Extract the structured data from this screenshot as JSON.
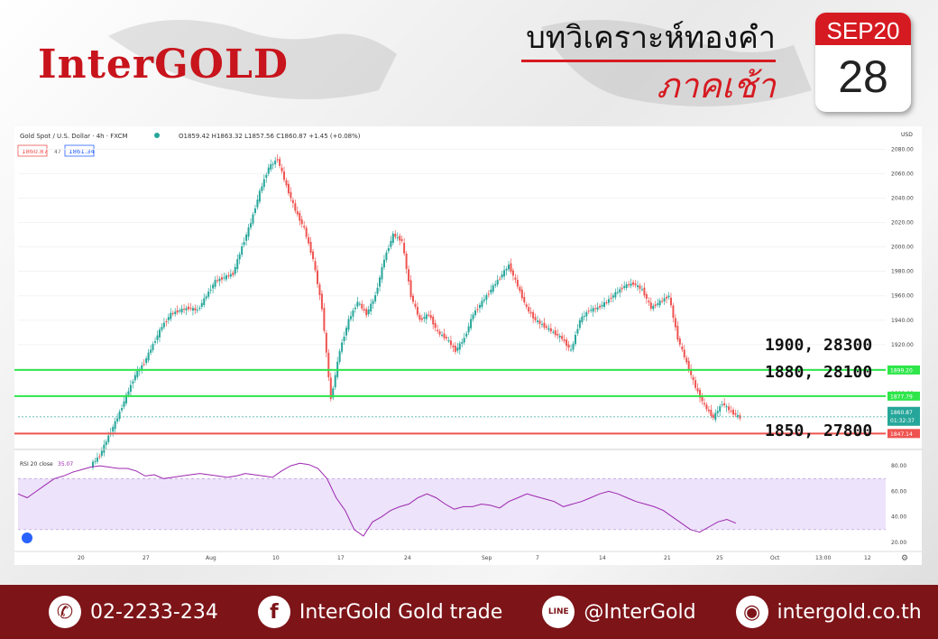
{
  "brand": {
    "logo": "InterGOLD"
  },
  "header": {
    "title_line1": "บทวิเคราะห์ทองคำ",
    "title_line2": "ภาคเช้า"
  },
  "calendar": {
    "month": "SEP20",
    "day": "28"
  },
  "colors": {
    "brand_red": "#d61a21",
    "footer_bg": "#7d1418",
    "bull": "#26a69a",
    "bear": "#ef5350",
    "support_green": "#2ee64a",
    "resistance_red": "#ef5350",
    "rsi": "#9c27b0"
  },
  "chart_header": {
    "symbol": "Gold Spot / U.S. Dollar · 4h · FXCM",
    "ohlc": "O1859.42 H1863.32 L1857.56 C1860.87 +1.45 (+0.08%)",
    "bid": "1860.87",
    "spread": "47",
    "ask": "1861.34",
    "currency": "USD"
  },
  "chart_data": {
    "type": "line",
    "title": "",
    "ylabel": "",
    "ylim": [
      1840,
      2084
    ],
    "yticks": [
      "2080.00",
      "2060.00",
      "2040.00",
      "2020.00",
      "2000.00",
      "1980.00",
      "1960.00",
      "1940.00",
      "1920.00",
      "1900.00",
      "1880.00",
      "1860.00"
    ],
    "x_tick_labels": [
      "20",
      "27",
      "Aug",
      "10",
      "17",
      "24",
      "Sep",
      "7",
      "14",
      "21",
      "25",
      "Oct",
      "13:00",
      "12"
    ],
    "series": [
      {
        "values": [
          1829,
          1845,
          1860,
          1878,
          1895,
          1905,
          1920,
          1935,
          1945,
          1948,
          1950,
          1948,
          1960,
          1972,
          1975,
          1978,
          2000,
          2020,
          2045,
          2065,
          2072,
          2050,
          2030,
          2015,
          1990,
          1950,
          1875,
          1915,
          1940,
          1955,
          1945,
          1960,
          1990,
          2010,
          2005,
          1960,
          1940,
          1945,
          1930,
          1925,
          1915,
          1925,
          1945,
          1955,
          1965,
          1975,
          1985,
          1968,
          1950,
          1940,
          1935,
          1930,
          1925,
          1915,
          1940,
          1948,
          1950,
          1955,
          1962,
          1968,
          1970,
          1965,
          1950,
          1955,
          1960,
          1925,
          1905,
          1885,
          1870,
          1860,
          1872,
          1865,
          1860
        ]
      }
    ],
    "levels": [
      {
        "price": 1899.2,
        "label": "1900, 28300",
        "axis_tag": "1899.20",
        "kind": "support"
      },
      {
        "price": 1877.79,
        "label": "1880, 28100",
        "axis_tag": "1877.79",
        "kind": "support"
      },
      {
        "price": 1847.14,
        "label": "1850, 27800",
        "axis_tag": "1847.14",
        "kind": "support"
      }
    ],
    "last_price": {
      "value": 1860.87,
      "tag": "1860.87",
      "countdown": "01:32:37"
    },
    "rsi": {
      "label": "RSI 20 close",
      "value": "35.07",
      "ylim": [
        15,
        90
      ],
      "upper": 70,
      "lower": 30,
      "yticks": [
        "80.00",
        "60.00",
        "40.00",
        "20.00"
      ],
      "values": [
        58,
        55,
        60,
        65,
        70,
        72,
        75,
        77,
        79,
        80,
        79,
        78,
        78,
        76,
        72,
        73,
        70,
        71,
        72,
        73,
        74,
        73,
        72,
        71,
        72,
        74,
        73,
        72,
        71,
        76,
        80,
        82,
        81,
        78,
        70,
        55,
        45,
        30,
        25,
        36,
        40,
        45,
        48,
        50,
        55,
        58,
        55,
        50,
        46,
        48,
        48,
        50,
        49,
        47,
        52,
        55,
        58,
        56,
        54,
        52,
        48,
        50,
        52,
        55,
        58,
        60,
        58,
        55,
        52,
        50,
        48,
        45,
        40,
        35,
        30,
        28,
        32,
        36,
        38,
        35
      ]
    }
  },
  "footer": {
    "phone": "02-2233-234",
    "facebook": "InterGold Gold trade",
    "line": "@InterGold",
    "web": "intergold.co.th",
    "phone_icon": "phone-icon",
    "facebook_icon": "facebook-icon",
    "line_icon": "line-icon",
    "web_icon": "globe-icon"
  }
}
